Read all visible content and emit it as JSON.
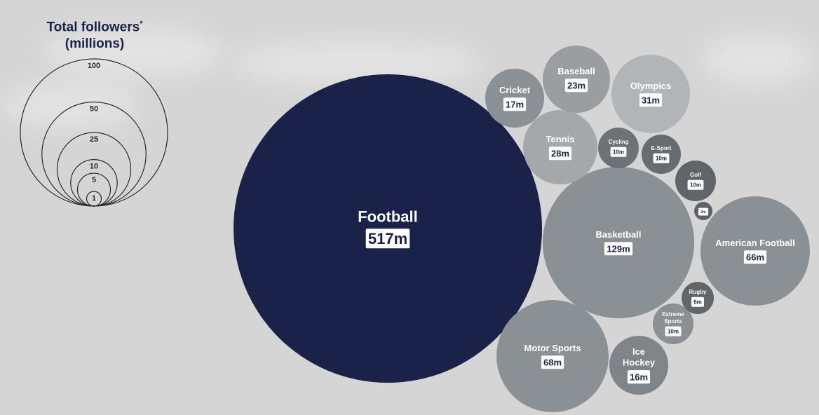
{
  "chart_data": {
    "type": "bubble",
    "legend": {
      "title": "Total followers",
      "title_mark": "*",
      "unit_line": "(millions)",
      "scale": [
        100,
        50,
        25,
        10,
        5,
        1
      ]
    },
    "items": [
      {
        "name": "Football",
        "value": 517,
        "label": "517m",
        "color": "#1b2249"
      },
      {
        "name": "Basketball",
        "value": 129,
        "label": "129m",
        "color": "#8b9094"
      },
      {
        "name": "Motor Sports",
        "value": 68,
        "label": "68m",
        "color": "#8b9094"
      },
      {
        "name": "American Football",
        "value": 66,
        "label": "66m",
        "color": "#8b9094"
      },
      {
        "name": "Olympics",
        "value": 31,
        "label": "31m",
        "color": "#b1b5b8"
      },
      {
        "name": "Tennis",
        "value": 28,
        "label": "28m",
        "color": "#a4a8ab"
      },
      {
        "name": "Baseball",
        "value": 23,
        "label": "23m",
        "color": "#9a9ea1"
      },
      {
        "name": "Cricket",
        "value": 17,
        "label": "17m",
        "color": "#8b9094"
      },
      {
        "name": "Ice Hockey",
        "value": 16,
        "label": "16m",
        "color": "#7f8488"
      },
      {
        "name": "Cycling",
        "value": 10,
        "label": "10m",
        "color": "#6c7276"
      },
      {
        "name": "E-Sport",
        "value": 10,
        "label": "10m",
        "color": "#666c70"
      },
      {
        "name": "Golf",
        "value": 10,
        "label": "10m",
        "color": "#5f6569"
      },
      {
        "name": "Extreme Sports",
        "value": 10,
        "label": "10m",
        "color": "#8b9094"
      },
      {
        "name": "Rugby",
        "value": 6,
        "label": "6m",
        "color": "#60666a"
      },
      {
        "name": "",
        "value": 2,
        "label": "2m",
        "color": "#5c6266"
      }
    ]
  }
}
